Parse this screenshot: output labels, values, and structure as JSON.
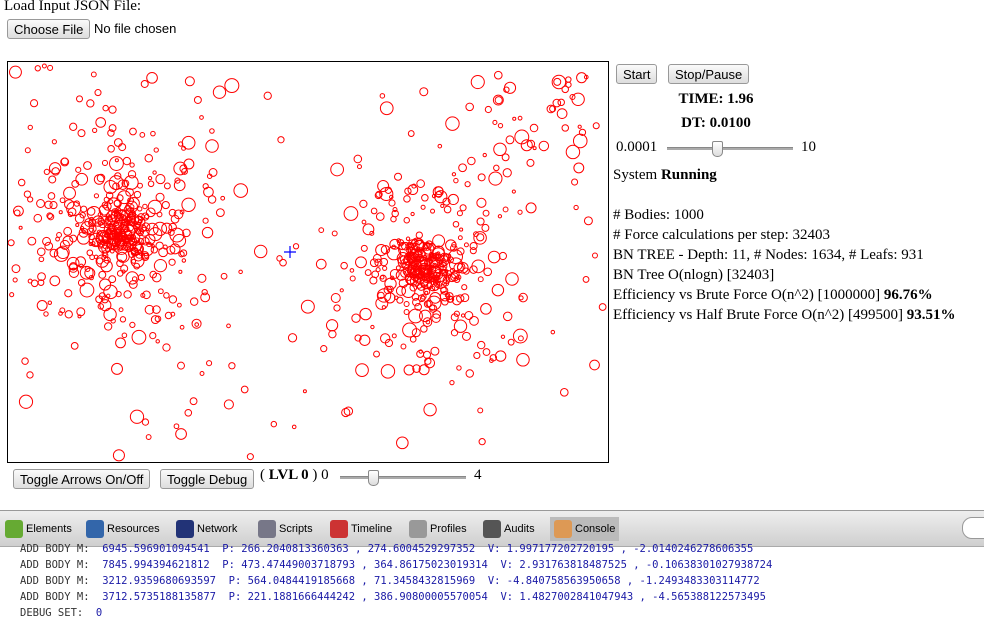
{
  "header": {
    "label": "Load Input JSON File:",
    "button": "Choose File",
    "file_status": "No file chosen"
  },
  "controls": {
    "start": "Start",
    "stop": "Stop/Pause",
    "time": "TIME: 1.96",
    "dt": "DT: 0.0100",
    "slider_min": "0.0001",
    "slider_max": "10"
  },
  "status": {
    "system_prefix": "System",
    "system_state": "Running",
    "lines": [
      "# Bodies: 1000",
      "# Force calculations per step: 32403",
      "BN TREE - Depth: 11, # Nodes: 1634, # Leafs: 931",
      "BN Tree O(nlogn) [32403]"
    ],
    "efficiency": [
      {
        "text": "Efficiency vs Brute Force O(n^2) [1000000]",
        "value": "96.76%"
      },
      {
        "text": "Efficiency vs Half Brute Force O(n^2) [499500]",
        "value": "93.51%"
      }
    ]
  },
  "bottom": {
    "toggle_arrows": "Toggle Arrows On/Off",
    "toggle_debug": "Toggle Debug",
    "lvl_open": "(",
    "lvl": "LVL 0",
    "lvl_close": ")",
    "slider_min": "0",
    "slider_max": "4"
  },
  "devtools": {
    "tabs": [
      "Elements",
      "Resources",
      "Network",
      "Scripts",
      "Timeline",
      "Profiles",
      "Audits",
      "Console"
    ],
    "console": [
      {
        "label": "ADD BODY M:",
        "rest": "6945.596901094541  P: 266.2040813360363 , 274.6004529297352  V: 1.997177202720195 , -2.0140246278606355"
      },
      {
        "label": "ADD BODY M:",
        "rest": "7845.994394621812  P: 473.47449003718793 , 364.86175023019314  V: 2.931763818487525 , -0.10638301027938724"
      },
      {
        "label": "ADD BODY M:",
        "rest": "3212.9359680693597  P: 564.0484419185668 , 71.3458432815969  V: -4.840758563950658 , -1.2493483303114772"
      },
      {
        "label": "ADD BODY M:",
        "rest": "3712.5735188135877  P: 221.1881666444242 , 386.90800005570054  V: 1.4827002841047943 , -4.565388122573495"
      },
      {
        "label": "DEBUG SET:",
        "rest": "0"
      }
    ]
  }
}
